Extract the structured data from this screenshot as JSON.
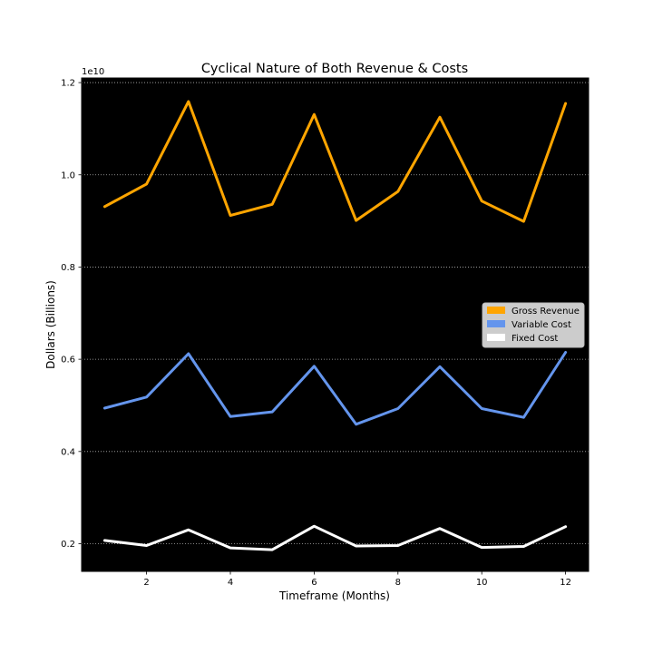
{
  "chart_data": {
    "type": "line",
    "title": "Cyclical Nature of Both Revenue & Costs",
    "xlabel": "Timeframe (Months)",
    "ylabel": "Dollars (Billions)",
    "offset_text": "1e10",
    "x": [
      1,
      2,
      3,
      4,
      5,
      6,
      7,
      8,
      9,
      10,
      11,
      12
    ],
    "xlim": [
      0.45,
      12.55
    ],
    "ylim": [
      0.14,
      1.21
    ],
    "x_ticks": [
      2,
      4,
      6,
      8,
      10,
      12
    ],
    "y_ticks": [
      0.2,
      0.4,
      0.6,
      0.8,
      1.0,
      1.2
    ],
    "y_tick_labels": [
      "0.2",
      "0.4",
      "0.6",
      "0.8",
      "1.0",
      "1.2"
    ],
    "grid": "horizontal dotted",
    "background": "#000000",
    "legend_position": "center-right",
    "series": [
      {
        "name": "Gross Revenue",
        "color": "#FFA500",
        "values": [
          0.931,
          0.98,
          1.159,
          0.912,
          0.936,
          1.131,
          0.901,
          0.964,
          1.125,
          0.943,
          0.899,
          1.155
        ]
      },
      {
        "name": "Variable Cost",
        "color": "#6495ED",
        "values": [
          0.494,
          0.518,
          0.612,
          0.476,
          0.486,
          0.585,
          0.459,
          0.493,
          0.584,
          0.493,
          0.474,
          0.615
        ]
      },
      {
        "name": "Fixed Cost",
        "color": "#FFFFFF",
        "values": [
          0.207,
          0.196,
          0.23,
          0.191,
          0.187,
          0.238,
          0.195,
          0.196,
          0.233,
          0.192,
          0.194,
          0.237
        ]
      }
    ]
  }
}
